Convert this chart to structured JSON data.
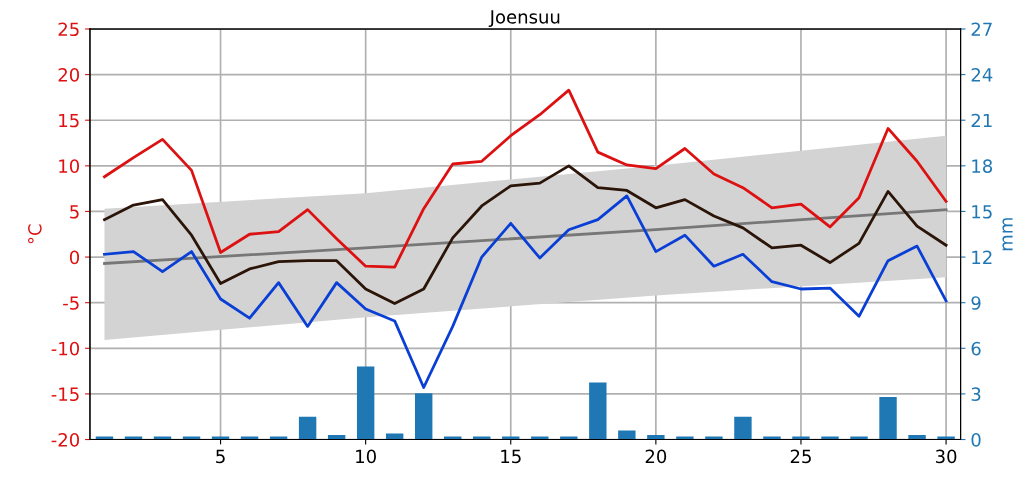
{
  "chart_data": {
    "type": "line",
    "title": "Joensuu",
    "ylabel": "°C",
    "y2label": "mm",
    "x": [
      1,
      2,
      3,
      4,
      5,
      6,
      7,
      8,
      9,
      10,
      11,
      12,
      13,
      14,
      15,
      16,
      17,
      18,
      19,
      20,
      21,
      22,
      23,
      24,
      25,
      26,
      27,
      28,
      29,
      30
    ],
    "series": [
      {
        "type": "bar",
        "axis": "y2",
        "color": "#1f77b4",
        "values": [
          0.2,
          0.2,
          0.2,
          0.2,
          0.2,
          0.2,
          0.2,
          1.5,
          0.3,
          4.8,
          0.4,
          3.05,
          0.2,
          0.2,
          0.2,
          0.2,
          0.2,
          3.75,
          0.6,
          0.3,
          0.2,
          0.2,
          1.5,
          0.2,
          0.2,
          0.2,
          0.2,
          2.8,
          0.3,
          0.2
        ]
      },
      {
        "color": "#777777",
        "x": [
          1,
          10,
          20,
          30
        ],
        "values": [
          -0.7,
          1.0,
          3.0,
          5.2
        ],
        "lower": [
          -9.1,
          -6.6,
          -4.2,
          -2.2
        ],
        "upper": [
          5.3,
          7.0,
          10.0,
          13.3
        ]
      },
      {
        "color": "#dd1111",
        "values": [
          8.8,
          10.9,
          12.9,
          9.5,
          0.5,
          2.5,
          2.8,
          5.2,
          2.0,
          -1.0,
          -1.1,
          5.3,
          10.2,
          10.5,
          13.3,
          15.6,
          18.3,
          11.5,
          10.1,
          9.7,
          11.9,
          9.1,
          7.6,
          5.4,
          5.8,
          3.3,
          6.5,
          14.1,
          10.5,
          6.1
        ]
      },
      {
        "color": "#2b1408",
        "values": [
          4.1,
          5.7,
          6.3,
          2.4,
          -2.9,
          -1.3,
          -0.5,
          -0.4,
          -0.4,
          -3.5,
          -5.1,
          -3.5,
          2.1,
          5.6,
          7.8,
          8.1,
          10.0,
          7.6,
          7.3,
          5.4,
          6.3,
          4.5,
          3.2,
          1.0,
          1.3,
          -0.6,
          1.5,
          7.2,
          3.4,
          1.3
        ]
      },
      {
        "color": "#0a3fd6",
        "values": [
          0.3,
          0.6,
          -1.6,
          0.6,
          -4.6,
          -6.7,
          -2.8,
          -7.6,
          -2.8,
          -5.7,
          -7.0,
          -14.3,
          -7.6,
          0.0,
          3.7,
          -0.1,
          3.0,
          4.1,
          6.7,
          0.6,
          2.4,
          -1.0,
          0.3,
          -2.7,
          -3.5,
          -3.4,
          -6.5,
          -0.4,
          1.2,
          -4.8
        ]
      }
    ],
    "xlim": [
      0.5,
      30.5
    ],
    "xticks": [
      5,
      10,
      15,
      20,
      25,
      30
    ],
    "ylim": [
      -20,
      25
    ],
    "yticks": [
      -20,
      -15,
      -10,
      -5,
      0,
      5,
      10,
      15,
      20,
      25
    ],
    "y2lim": [
      0,
      27
    ],
    "y2ticks": [
      0,
      3,
      6,
      9,
      12,
      15,
      18,
      21,
      24,
      27
    ],
    "grid": true,
    "marker": "none",
    "line_style": "solid"
  }
}
